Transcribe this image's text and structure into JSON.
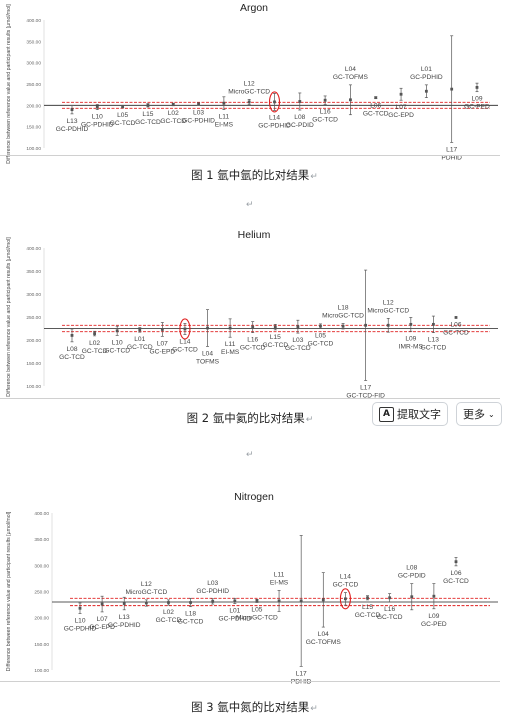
{
  "chart_data": [
    {
      "type": "scatter",
      "title": "Argon",
      "ylabel": "Difference between reference value and participant results [µmol/mol]",
      "ylim": [
        100,
        400
      ],
      "yticks": [
        "400.00",
        "350.00",
        "300.00",
        "250.00",
        "200.00",
        "150.00",
        "100.00"
      ],
      "reference": 200,
      "band": [
        193,
        207
      ],
      "points": [
        {
          "lab": "L13",
          "method": "GC-PDHID",
          "y": 190,
          "err": 10,
          "label_pos": "below"
        },
        {
          "lab": "L10",
          "method": "GC-PDHID",
          "y": 196,
          "err": 6,
          "label_pos": "below"
        },
        {
          "lab": "L05",
          "method": "GC-TCD",
          "y": 197,
          "err": 3,
          "label_pos": "below"
        },
        {
          "lab": "L15",
          "method": "GC-TCD",
          "y": 200,
          "err": 4,
          "label_pos": "below"
        },
        {
          "lab": "L02",
          "method": "GC-TCD",
          "y": 202,
          "err": 3,
          "label_pos": "below"
        },
        {
          "lab": "L03",
          "method": "GC-PDHID",
          "y": 203,
          "err": 3,
          "label_pos": "below"
        },
        {
          "lab": "L11",
          "method": "EI-MS",
          "y": 205,
          "err": 15,
          "label_pos": "below"
        },
        {
          "lab": "L12",
          "method": "MicroGC-TCD",
          "y": 208,
          "err": 6,
          "label_pos": "above"
        },
        {
          "lab": "L14",
          "method": "GC-PDHID",
          "y": 208,
          "err": 20,
          "label_pos": "below"
        },
        {
          "lab": "L08",
          "method": "GC-PDID",
          "y": 209,
          "err": 20,
          "label_pos": "below"
        },
        {
          "lab": "L16",
          "method": "GC-TCD",
          "y": 212,
          "err": 10,
          "label_pos": "below"
        },
        {
          "lab": "L04",
          "method": "GC-TOFMS",
          "y": 213,
          "err": 35,
          "label_pos": "above"
        },
        {
          "lab": "L06",
          "method": "GC-TCD",
          "y": 218,
          "err": 2,
          "label_pos": "below"
        },
        {
          "lab": "L07",
          "method": "GC-EPD",
          "y": 226,
          "err": 14,
          "label_pos": "below"
        },
        {
          "lab": "L01",
          "method": "GC-PDHID",
          "y": 233,
          "err": 15,
          "label_pos": "above"
        },
        {
          "lab": "L17",
          "method": "PDHID",
          "y": 238,
          "err": 125,
          "label_pos": "below"
        },
        {
          "lab": "L09",
          "method": "GC-PED",
          "y": 242,
          "err": 10,
          "label_pos": "below"
        }
      ]
    },
    {
      "type": "scatter",
      "title": "Helium",
      "ylabel": "Difference between reference value and participant results [µmol/mol]",
      "ylim": [
        100,
        400
      ],
      "yticks": [
        "400.00",
        "350.00",
        "300.00",
        "250.00",
        "200.00",
        "150.00",
        "100.00"
      ],
      "reference": 225,
      "band": [
        218,
        232
      ],
      "points": [
        {
          "lab": "L08",
          "method": "GC-TCD",
          "y": 210,
          "err": 14,
          "label_pos": "below"
        },
        {
          "lab": "L02",
          "method": "GC-TCD",
          "y": 214,
          "err": 5,
          "label_pos": "below"
        },
        {
          "lab": "L10",
          "method": "GC-TCD",
          "y": 220,
          "err": 10,
          "label_pos": "below"
        },
        {
          "lab": "L01",
          "method": "GC-TCD",
          "y": 222,
          "err": 5,
          "label_pos": "below"
        },
        {
          "lab": "L07",
          "method": "GC-EPD",
          "y": 223,
          "err": 15,
          "label_pos": "below"
        },
        {
          "lab": "L14",
          "method": "GC-TCD",
          "y": 224,
          "err": 12,
          "label_pos": "below"
        },
        {
          "lab": "L04",
          "method": "TOFMS",
          "y": 226,
          "err": 40,
          "label_pos": "below"
        },
        {
          "lab": "L11",
          "method": "EI-MS",
          "y": 226,
          "err": 20,
          "label_pos": "below"
        },
        {
          "lab": "L16",
          "method": "GC-TCD",
          "y": 228,
          "err": 12,
          "label_pos": "below"
        },
        {
          "lab": "L15",
          "method": "GC-TCD",
          "y": 228,
          "err": 6,
          "label_pos": "below"
        },
        {
          "lab": "L03",
          "method": "GC-TCD",
          "y": 229,
          "err": 14,
          "label_pos": "below"
        },
        {
          "lab": "L05",
          "method": "GC-TCD",
          "y": 230,
          "err": 5,
          "label_pos": "below"
        },
        {
          "lab": "L18",
          "method": "MicroGC-TCD",
          "y": 230,
          "err": 6,
          "label_pos": "above"
        },
        {
          "lab": "L17",
          "method": "GC-TCD-FID",
          "y": 232,
          "err": 120,
          "label_pos": "below"
        },
        {
          "lab": "L12",
          "method": "MicroGC-TCD",
          "y": 232,
          "err": 15,
          "label_pos": "above"
        },
        {
          "lab": "L09",
          "method": "IMR-MS",
          "y": 234,
          "err": 15,
          "label_pos": "below"
        },
        {
          "lab": "L13",
          "method": "GC-TCD",
          "y": 234,
          "err": 18,
          "label_pos": "below"
        },
        {
          "lab": "L06",
          "method": "GC-TCD",
          "y": 249,
          "err": 0,
          "label_pos": "below"
        }
      ]
    },
    {
      "type": "scatter",
      "title": "Nitrogen",
      "ylabel": "Difference between reference value and participant results [µmol/mol]",
      "ylim": [
        100,
        400
      ],
      "yticks": [
        "400.00",
        "350.00",
        "300.00",
        "250.00",
        "200.00",
        "150.00",
        "100.00"
      ],
      "reference": 230,
      "band": [
        223,
        237
      ],
      "points": [
        {
          "lab": "L10",
          "method": "GC-PDHID",
          "y": 218,
          "err": 10,
          "label_pos": "below"
        },
        {
          "lab": "L07",
          "method": "GC-EPD",
          "y": 226,
          "err": 15,
          "label_pos": "below"
        },
        {
          "lab": "L13",
          "method": "GC-PDHID",
          "y": 227,
          "err": 12,
          "label_pos": "below"
        },
        {
          "lab": "L12",
          "method": "MicroGC-TCD",
          "y": 228,
          "err": 6,
          "label_pos": "above"
        },
        {
          "lab": "L02",
          "method": "GC-TCD",
          "y": 229,
          "err": 5,
          "label_pos": "below"
        },
        {
          "lab": "L18",
          "method": "GC-TCD",
          "y": 229,
          "err": 8,
          "label_pos": "below"
        },
        {
          "lab": "L03",
          "method": "GC-PDHID",
          "y": 231,
          "err": 5,
          "label_pos": "above"
        },
        {
          "lab": "L01",
          "method": "GC-PDHID",
          "y": 232,
          "err": 5,
          "label_pos": "below"
        },
        {
          "lab": "L05",
          "method": "MicroGC-TCD",
          "y": 232,
          "err": 3,
          "label_pos": "below"
        },
        {
          "lab": "L11",
          "method": "EI-MS",
          "y": 232,
          "err": 20,
          "label_pos": "above"
        },
        {
          "lab": "L17",
          "method": "PDHID",
          "y": 232,
          "err": 125,
          "label_pos": "below"
        },
        {
          "lab": "L04",
          "method": "GC-TOFMS",
          "y": 234,
          "err": 52,
          "label_pos": "below"
        },
        {
          "lab": "L14",
          "method": "GC-TCD",
          "y": 236,
          "err": 12,
          "label_pos": "above"
        },
        {
          "lab": "L15",
          "method": "GC-TCD",
          "y": 238,
          "err": 4,
          "label_pos": "below"
        },
        {
          "lab": "L16",
          "method": "GC-TCD",
          "y": 238,
          "err": 8,
          "label_pos": "below"
        },
        {
          "lab": "L08",
          "method": "GC-PDID",
          "y": 240,
          "err": 25,
          "label_pos": "above"
        },
        {
          "lab": "L09",
          "method": "GC-PED",
          "y": 241,
          "err": 24,
          "label_pos": "below"
        },
        {
          "lab": "L06",
          "method": "GC-TCD",
          "y": 307,
          "err": 8,
          "label_pos": "below"
        }
      ]
    }
  ],
  "captions": [
    "图 1  氩中氩的比对结果",
    "图 2  氩中氦的比对结果",
    "图 3  氩中氮的比对结果"
  ],
  "return_mark": "↵",
  "toolbar": {
    "extract_label": "提取文字",
    "more_label": "更多"
  },
  "colors": {
    "reference_line": "#222222",
    "band_line": "#e02020",
    "highlight_circle": "#e02020",
    "point": "#555555",
    "error_bar": "#555555",
    "text": "#444444"
  }
}
